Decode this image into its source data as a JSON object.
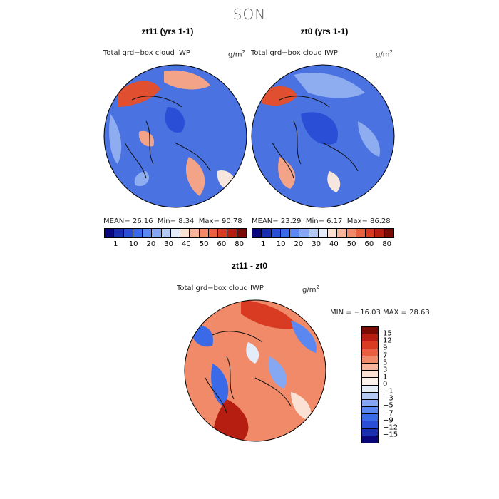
{
  "figure": {
    "season": "SON"
  },
  "panels": [
    {
      "id": "a",
      "title": "zt11 (yrs 1-1)",
      "variable": "Total grd−box cloud IWP",
      "unit": "g/m",
      "unit_sup": "2",
      "mean_label": "MEAN=",
      "mean": "26.16",
      "min_label": "Min=",
      "min": "8.34",
      "max_label": "Max=",
      "max": "90.78"
    },
    {
      "id": "b",
      "title": "zt0 (yrs 1-1)",
      "variable": "Total grd−box cloud IWP",
      "unit": "g/m",
      "unit_sup": "2",
      "mean_label": "MEAN=",
      "mean": "23.29",
      "min_label": "Min=",
      "min": "6.17",
      "max_label": "Max=",
      "max": "86.28"
    }
  ],
  "diff": {
    "title": "zt11 - zt0",
    "variable": "Total grd−box cloud IWP",
    "unit": "g/m",
    "unit_sup": "2",
    "min_label": "MIN =",
    "min": "−16.03",
    "max_label": "MAX =",
    "max": "28.63"
  },
  "colorbar_main": {
    "colors": [
      "#08087a",
      "#1a2fb0",
      "#2a4fd6",
      "#3a6ae8",
      "#5a88f0",
      "#86a8f2",
      "#b4c9f4",
      "#e4ecfa",
      "#fbe0d4",
      "#f7b59c",
      "#f08a68",
      "#e8603f",
      "#d83a22",
      "#b51e10",
      "#7a0a06"
    ],
    "tick_labels": [
      "1",
      "10",
      "20",
      "30",
      "40",
      "50",
      "60",
      "80"
    ]
  },
  "colorbar_diff": {
    "colors": [
      "#7a0a06",
      "#b51e10",
      "#d83a22",
      "#e8603f",
      "#f08a68",
      "#f7b59c",
      "#fbe0d4",
      "#fdf3ec",
      "#e4ecfa",
      "#b4c9f4",
      "#86a8f2",
      "#5a88f0",
      "#3a6ae8",
      "#2a4fd6",
      "#1a2fb0",
      "#08087a"
    ],
    "tick_labels": [
      "15",
      "12",
      "9",
      "7",
      "5",
      "3",
      "1",
      "0",
      "−1",
      "−3",
      "−5",
      "−7",
      "−9",
      "−12",
      "−15"
    ]
  },
  "map_colors": {
    "blue": "#4a72e0",
    "deep_blue": "#2a4fd6",
    "light_blue": "#8eacf0",
    "red": "#e05030",
    "light_red": "#f3a488",
    "pale": "#f6e6de"
  }
}
